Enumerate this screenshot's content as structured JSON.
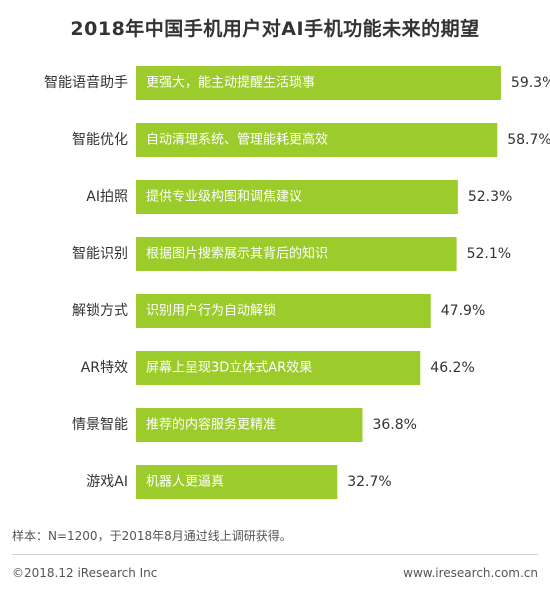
{
  "chart_data": {
    "type": "bar",
    "orientation": "horizontal",
    "title": "2018年中国手机用户对AI手机功能未来的期望",
    "categories": [
      "智能语音助手",
      "智能优化",
      "AI拍照",
      "智能识别",
      "解锁方式",
      "AR特效",
      "情景智能",
      "游戏AI"
    ],
    "bar_labels": [
      "更强大，能主动提醒生活琐事",
      "自动清理系统、管理能耗更高效",
      "提供专业级构图和调焦建议",
      "根据图片搜索展示其背后的知识",
      "识别用户行为自动解锁",
      "屏幕上呈现3D立体式AR效果",
      "推荐的内容服务更精准",
      "机器人更逼真"
    ],
    "values": [
      59.3,
      58.7,
      52.3,
      52.1,
      47.9,
      46.2,
      36.8,
      32.7
    ],
    "value_labels": [
      "59.3%",
      "58.7%",
      "52.3%",
      "52.1%",
      "47.9%",
      "46.2%",
      "36.8%",
      "32.7%"
    ],
    "xlim": [
      0,
      65
    ],
    "grid": false,
    "bar_color": "#9ccc2b"
  },
  "footer": {
    "sample_note": "样本：N=1200，于2018年8月通过线上调研获得。",
    "copyright": "©2018.12 iResearch Inc",
    "website": "www.iresearch.com.cn"
  }
}
